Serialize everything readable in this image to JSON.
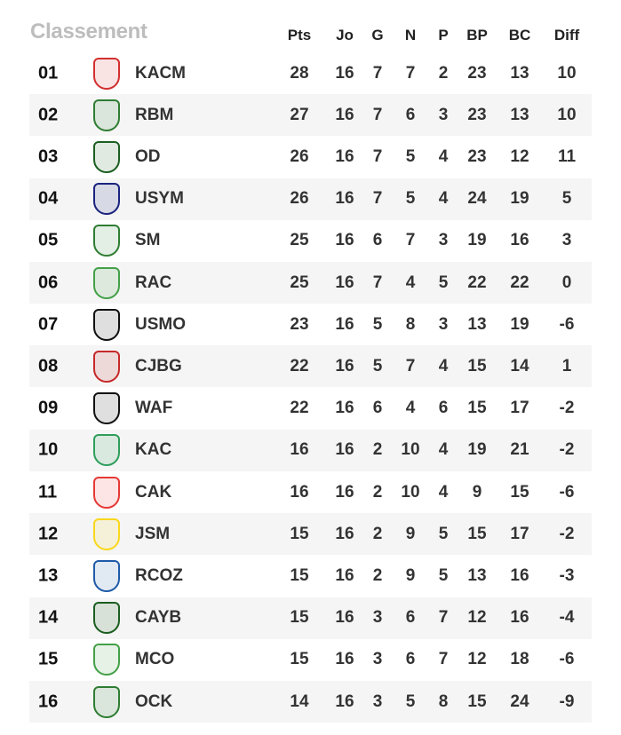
{
  "title": "Classement",
  "headers": [
    "Pts",
    "Jo",
    "G",
    "N",
    "P",
    "BP",
    "BC",
    "Diff"
  ],
  "rows": [
    {
      "rank": "01",
      "team": "KACM",
      "logo_color": "#d32f2f",
      "stats": [
        "28",
        "16",
        "7",
        "7",
        "2",
        "23",
        "13",
        "10"
      ]
    },
    {
      "rank": "02",
      "team": "RBM",
      "logo_color": "#2e7d32",
      "stats": [
        "27",
        "16",
        "7",
        "6",
        "3",
        "23",
        "13",
        "10"
      ]
    },
    {
      "rank": "03",
      "team": "OD",
      "logo_color": "#1b5e20",
      "stats": [
        "26",
        "16",
        "7",
        "5",
        "4",
        "23",
        "12",
        "11"
      ]
    },
    {
      "rank": "04",
      "team": "USYM",
      "logo_color": "#1a237e",
      "stats": [
        "26",
        "16",
        "7",
        "5",
        "4",
        "24",
        "19",
        "5"
      ]
    },
    {
      "rank": "05",
      "team": "SM",
      "logo_color": "#2e7d32",
      "stats": [
        "25",
        "16",
        "6",
        "7",
        "3",
        "19",
        "16",
        "3"
      ]
    },
    {
      "rank": "06",
      "team": "RAC",
      "logo_color": "#43a047",
      "stats": [
        "25",
        "16",
        "7",
        "4",
        "5",
        "22",
        "22",
        "0"
      ]
    },
    {
      "rank": "07",
      "team": "USMO",
      "logo_color": "#111111",
      "stats": [
        "23",
        "16",
        "5",
        "8",
        "3",
        "13",
        "19",
        "-6"
      ]
    },
    {
      "rank": "08",
      "team": "CJBG",
      "logo_color": "#c62828",
      "stats": [
        "22",
        "16",
        "5",
        "7",
        "4",
        "15",
        "14",
        "1"
      ]
    },
    {
      "rank": "09",
      "team": "WAF",
      "logo_color": "#111111",
      "stats": [
        "22",
        "16",
        "6",
        "4",
        "6",
        "15",
        "17",
        "-2"
      ]
    },
    {
      "rank": "10",
      "team": "KAC",
      "logo_color": "#2e9e5b",
      "stats": [
        "16",
        "16",
        "2",
        "10",
        "4",
        "19",
        "21",
        "-2"
      ]
    },
    {
      "rank": "11",
      "team": "CAK",
      "logo_color": "#e53935",
      "stats": [
        "16",
        "16",
        "2",
        "10",
        "4",
        "9",
        "15",
        "-6"
      ]
    },
    {
      "rank": "12",
      "team": "JSM",
      "logo_color": "#f9d71c",
      "stats": [
        "15",
        "16",
        "2",
        "9",
        "5",
        "15",
        "17",
        "-2"
      ]
    },
    {
      "rank": "13",
      "team": "RCOZ",
      "logo_color": "#1e5aa8",
      "stats": [
        "15",
        "16",
        "2",
        "9",
        "5",
        "13",
        "16",
        "-3"
      ]
    },
    {
      "rank": "14",
      "team": "CAYB",
      "logo_color": "#1b5e20",
      "stats": [
        "15",
        "16",
        "3",
        "6",
        "7",
        "12",
        "16",
        "-4"
      ]
    },
    {
      "rank": "15",
      "team": "MCO",
      "logo_color": "#43a047",
      "stats": [
        "15",
        "16",
        "3",
        "6",
        "7",
        "12",
        "18",
        "-6"
      ]
    },
    {
      "rank": "16",
      "team": "OCK",
      "logo_color": "#2e7d32",
      "stats": [
        "14",
        "16",
        "3",
        "5",
        "8",
        "15",
        "24",
        "-9"
      ]
    }
  ]
}
